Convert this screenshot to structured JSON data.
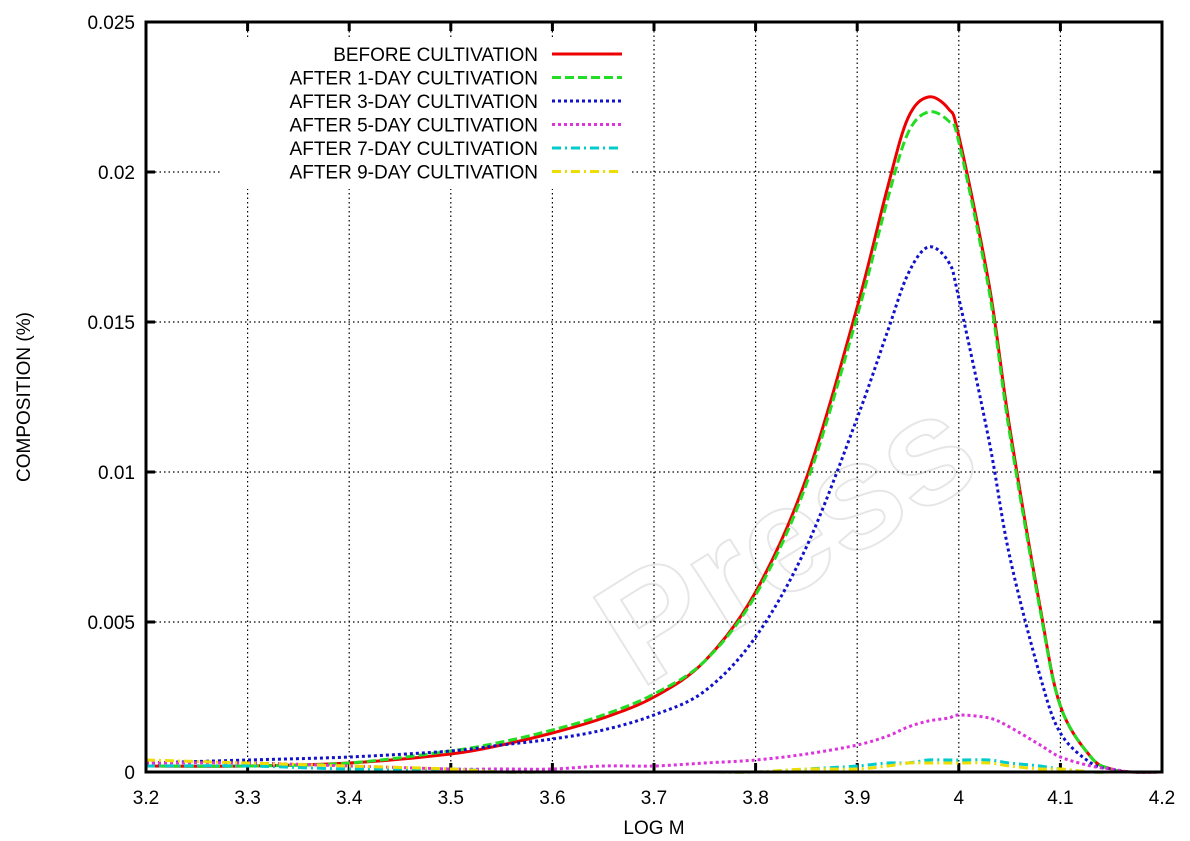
{
  "chart_data": {
    "type": "line",
    "title": "",
    "xlabel": "LOG M",
    "ylabel": "COMPOSITION (%)",
    "xlim": [
      3.2,
      4.2
    ],
    "ylim": [
      0,
      0.025
    ],
    "grid": true,
    "legend_position": "top-left",
    "x_ticks": [
      "3.2",
      "3.3",
      "3.4",
      "3.5",
      "3.6",
      "3.7",
      "3.8",
      "3.9",
      "4",
      "4.1",
      "4.2"
    ],
    "y_ticks": [
      "0",
      "0.005",
      "0.01",
      "0.015",
      "0.02",
      "0.025"
    ],
    "x": [
      3.2,
      3.3,
      3.4,
      3.5,
      3.55,
      3.6,
      3.65,
      3.7,
      3.75,
      3.8,
      3.85,
      3.9,
      3.93,
      3.95,
      3.97,
      3.99,
      4.0,
      4.03,
      4.05,
      4.08,
      4.1,
      4.13,
      4.15,
      4.17,
      4.2
    ],
    "series": [
      {
        "name": "BEFORE CULTIVATION",
        "color": "#ee0000",
        "style": "solid",
        "values": [
          0.0002,
          0.0002,
          0.0003,
          0.0006,
          0.0009,
          0.0013,
          0.0018,
          0.0025,
          0.0037,
          0.006,
          0.0098,
          0.0155,
          0.0195,
          0.0218,
          0.0225,
          0.0221,
          0.0212,
          0.0162,
          0.0115,
          0.0055,
          0.0022,
          0.0005,
          0.0001,
          0.0,
          0.0
        ]
      },
      {
        "name": "AFTER 1-DAY CULTIVATION",
        "color": "#22dd22",
        "style": "dashed",
        "values": [
          0.0002,
          0.0002,
          0.0003,
          0.0007,
          0.001,
          0.0014,
          0.0019,
          0.0026,
          0.0037,
          0.0059,
          0.0096,
          0.0152,
          0.0191,
          0.0213,
          0.022,
          0.0217,
          0.021,
          0.016,
          0.0113,
          0.0054,
          0.0022,
          0.0005,
          0.0001,
          0.0,
          0.0
        ]
      },
      {
        "name": "AFTER 3-DAY CULTIVATION",
        "color": "#1111cc",
        "style": "dotted",
        "values": [
          0.0003,
          0.0004,
          0.0005,
          0.0007,
          0.0009,
          0.0011,
          0.0014,
          0.0019,
          0.0027,
          0.0045,
          0.0075,
          0.0118,
          0.0147,
          0.0166,
          0.0175,
          0.017,
          0.0158,
          0.011,
          0.0072,
          0.0032,
          0.0013,
          0.0003,
          0.0001,
          0.0,
          0.0
        ]
      },
      {
        "name": "AFTER 5-DAY CULTIVATION",
        "color": "#dd33dd",
        "style": "dotted",
        "values": [
          0.0003,
          0.0003,
          0.0002,
          0.0001,
          0.0001,
          0.0001,
          0.0002,
          0.0002,
          0.0003,
          0.0004,
          0.0006,
          0.0009,
          0.0012,
          0.0015,
          0.0017,
          0.0018,
          0.0019,
          0.0018,
          0.0015,
          0.0009,
          0.0005,
          0.0002,
          0.0001,
          0.0,
          0.0
        ]
      },
      {
        "name": "AFTER 7-DAY CULTIVATION",
        "color": "#00cccc",
        "style": "dashdot",
        "values": [
          0.0002,
          0.0002,
          0.0001,
          0.0001,
          0.0,
          0.0,
          0.0,
          0.0,
          0.0,
          0.0,
          0.0001,
          0.0002,
          0.0003,
          0.0003,
          0.0004,
          0.0004,
          0.0004,
          0.0004,
          0.0003,
          0.0002,
          0.0001,
          0.0,
          0.0,
          0.0,
          0.0
        ]
      },
      {
        "name": "AFTER 9-DAY CULTIVATION",
        "color": "#eedd00",
        "style": "dashdot",
        "values": [
          0.0004,
          0.0003,
          0.0002,
          0.0001,
          0.0,
          0.0,
          0.0,
          0.0,
          0.0,
          0.0,
          0.0001,
          0.0001,
          0.0002,
          0.0003,
          0.0003,
          0.0003,
          0.0003,
          0.0003,
          0.0002,
          0.0001,
          0.0001,
          0.0,
          0.0,
          0.0,
          0.0
        ]
      }
    ]
  }
}
